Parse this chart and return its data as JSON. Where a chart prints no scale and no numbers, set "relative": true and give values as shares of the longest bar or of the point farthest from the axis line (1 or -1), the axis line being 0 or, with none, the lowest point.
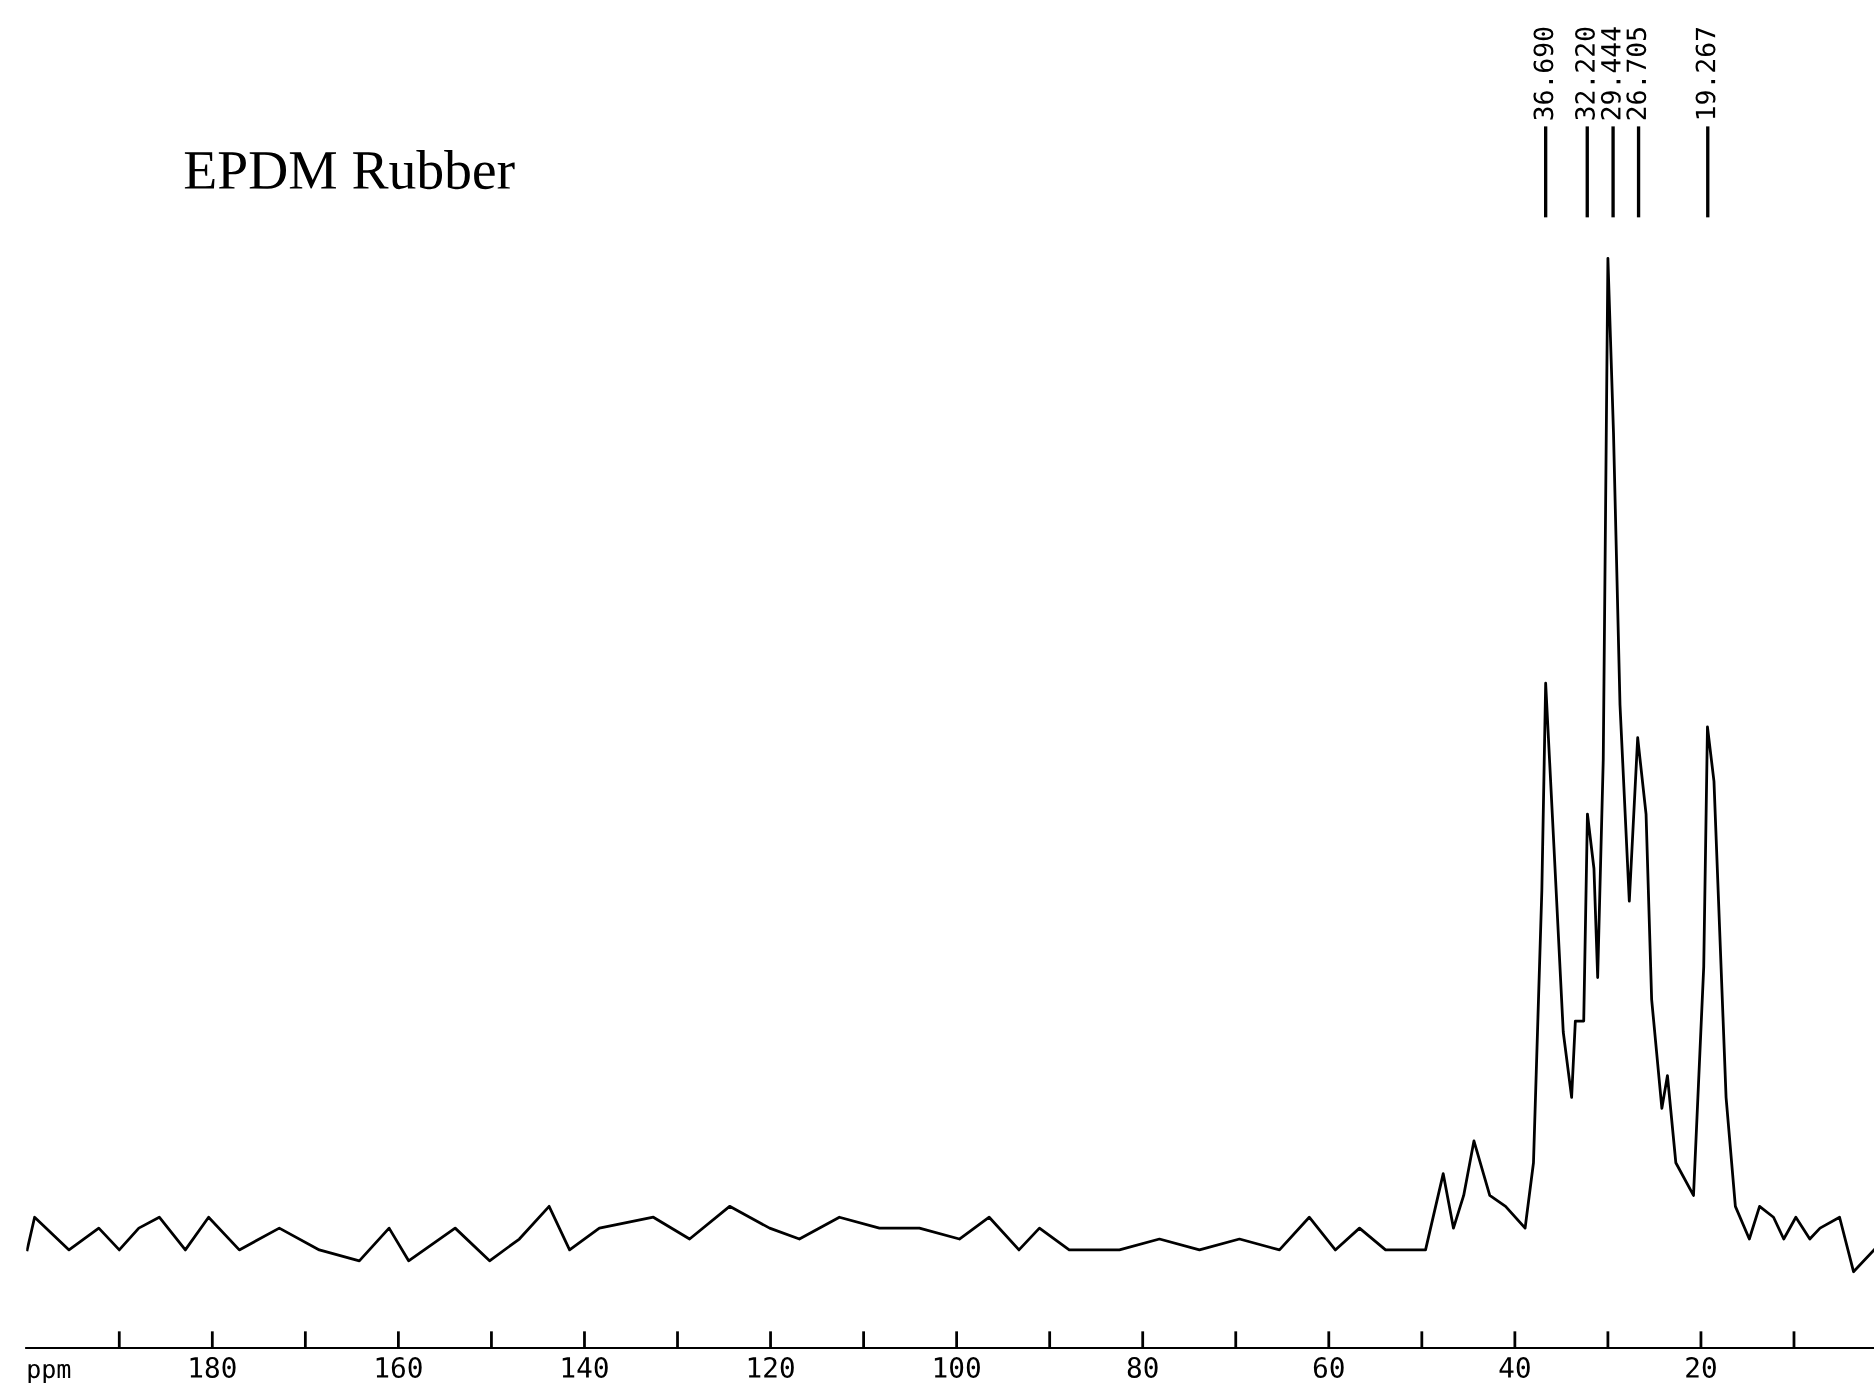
{
  "chart_data": {
    "type": "line",
    "title": "EPDM Rubber",
    "xlabel": "ppm",
    "relative": true,
    "grid": false,
    "legend": false,
    "marker": "none",
    "line_style": "solid",
    "xlim": [
      200,
      1.4
    ],
    "xticks": [
      {
        "value": 190,
        "label": null
      },
      180,
      {
        "value": 170,
        "label": null
      },
      160,
      {
        "value": 150,
        "label": null
      },
      140,
      {
        "value": 130,
        "label": null
      },
      120,
      {
        "value": 110,
        "label": null
      },
      100,
      {
        "value": 90,
        "label": null
      },
      80,
      {
        "value": 70,
        "label": null
      },
      60,
      {
        "value": 50,
        "label": null
      },
      40,
      {
        "value": 30,
        "label": null
      },
      20,
      {
        "value": 10,
        "label": null
      }
    ],
    "ref_lines": [
      {
        "axis": "x",
        "value": 36.69,
        "label": "36.690"
      },
      {
        "axis": "x",
        "value": 32.22,
        "label": "32.220"
      },
      {
        "axis": "x",
        "value": 29.444,
        "label": "29.444"
      },
      {
        "axis": "x",
        "value": 26.705,
        "label": "26.705"
      },
      {
        "axis": "x",
        "value": 19.267,
        "label": "19.267"
      }
    ],
    "series": [
      {
        "color": "#000000",
        "x": [
          199.9,
          199.1,
          195.4,
          192.2,
          190.0,
          187.9,
          185.7,
          182.9,
          180.4,
          177.1,
          172.8,
          168.5,
          164.2,
          161.0,
          158.9,
          153.9,
          150.2,
          147.0,
          143.8,
          141.6,
          138.4,
          132.6,
          128.7,
          124.4,
          120.1,
          116.9,
          112.6,
          108.3,
          104.0,
          99.7,
          96.5,
          93.3,
          91.1,
          87.9,
          82.5,
          78.2,
          73.9,
          69.6,
          65.3,
          62.1,
          59.3,
          56.7,
          53.9,
          52.4,
          49.6,
          47.7,
          46.6,
          45.5,
          44.4,
          42.7,
          41.0,
          38.9,
          38.0,
          37.1,
          36.69,
          35.8,
          34.8,
          33.9,
          33.5,
          32.6,
          32.2,
          31.5,
          31.1,
          30.5,
          30.0,
          29.4,
          28.7,
          27.7,
          26.8,
          25.9,
          25.3,
          24.2,
          23.6,
          22.7,
          20.8,
          19.7,
          19.3,
          18.6,
          17.3,
          16.3,
          14.8,
          13.7,
          12.2,
          11.1,
          9.8,
          8.3,
          7.2,
          5.1,
          3.6,
          1.4
        ],
        "values": [
          0.09,
          0.12,
          0.09,
          0.11,
          0.09,
          0.11,
          0.12,
          0.09,
          0.12,
          0.09,
          0.11,
          0.09,
          0.08,
          0.11,
          0.08,
          0.11,
          0.08,
          0.1,
          0.13,
          0.09,
          0.11,
          0.12,
          0.1,
          0.13,
          0.11,
          0.1,
          0.12,
          0.11,
          0.11,
          0.1,
          0.12,
          0.09,
          0.11,
          0.09,
          0.09,
          0.1,
          0.09,
          0.1,
          0.09,
          0.12,
          0.09,
          0.11,
          0.09,
          0.09,
          0.09,
          0.16,
          0.11,
          0.14,
          0.19,
          0.14,
          0.13,
          0.11,
          0.17,
          0.42,
          0.61,
          0.46,
          0.29,
          0.23,
          0.3,
          0.3,
          0.49,
          0.44,
          0.34,
          0.54,
          1,
          0.84,
          0.59,
          0.41,
          0.56,
          0.49,
          0.32,
          0.22,
          0.25,
          0.17,
          0.14,
          0.35,
          0.57,
          0.52,
          0.23,
          0.13,
          0.1,
          0.13,
          0.12,
          0.1,
          0.12,
          0.1,
          0.11,
          0.12,
          0.07,
          0.09
        ]
      }
    ]
  }
}
